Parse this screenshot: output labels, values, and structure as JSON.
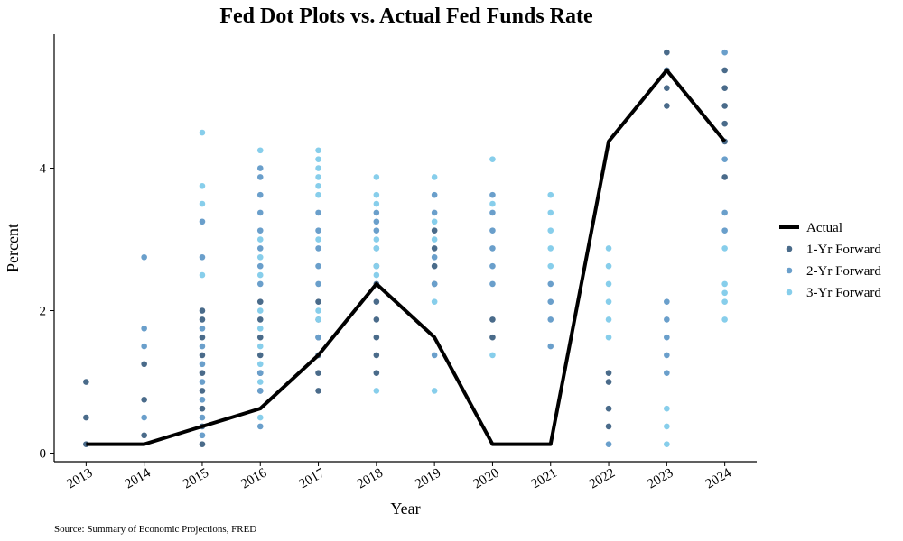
{
  "chart_data": {
    "type": "scatter",
    "title": "Fed Dot Plots vs. Actual Fed Funds Rate",
    "xlabel": "Year",
    "ylabel": "Percent",
    "source": "Source: Summary of Economic Projections, FRED",
    "x_ticks": [
      "2013",
      "2014",
      "2015",
      "2016",
      "2017",
      "2018",
      "2019",
      "2020",
      "2021",
      "2022",
      "2023",
      "2024"
    ],
    "y_ticks": [
      "0",
      "2",
      "4"
    ],
    "xlim": [
      2012.45,
      2024.55
    ],
    "ylim": [
      -0.12,
      5.88
    ],
    "legend_position": "right",
    "grid": false,
    "line": {
      "name": "Actual",
      "color": "#000000",
      "x": [
        2013,
        2014,
        2015,
        2016,
        2017,
        2018,
        2019,
        2020,
        2021,
        2022,
        2023,
        2024
      ],
      "y": [
        0.125,
        0.125,
        0.375,
        0.625,
        1.375,
        2.375,
        1.625,
        0.125,
        0.125,
        4.375,
        5.375,
        4.375
      ]
    },
    "series": [
      {
        "name": "1-Yr Forward",
        "color": "#4a6b8a",
        "points": [
          [
            2013,
            1.0
          ],
          [
            2013,
            0.5
          ],
          [
            2013,
            0.125
          ],
          [
            2014,
            1.25
          ],
          [
            2014,
            0.75
          ],
          [
            2014,
            0.25
          ],
          [
            2015,
            2.0
          ],
          [
            2015,
            1.875
          ],
          [
            2015,
            1.625
          ],
          [
            2015,
            1.375
          ],
          [
            2015,
            1.125
          ],
          [
            2015,
            0.875
          ],
          [
            2015,
            0.625
          ],
          [
            2015,
            0.375
          ],
          [
            2015,
            0.125
          ],
          [
            2016,
            2.125
          ],
          [
            2016,
            1.875
          ],
          [
            2016,
            1.625
          ],
          [
            2016,
            1.375
          ],
          [
            2016,
            1.125
          ],
          [
            2016,
            0.875
          ],
          [
            2017,
            2.125
          ],
          [
            2017,
            1.875
          ],
          [
            2017,
            1.625
          ],
          [
            2017,
            1.375
          ],
          [
            2017,
            1.125
          ],
          [
            2017,
            0.875
          ],
          [
            2018,
            2.625
          ],
          [
            2018,
            2.375
          ],
          [
            2018,
            2.125
          ],
          [
            2018,
            1.875
          ],
          [
            2018,
            1.625
          ],
          [
            2018,
            1.375
          ],
          [
            2018,
            1.125
          ],
          [
            2019,
            3.125
          ],
          [
            2019,
            2.875
          ],
          [
            2019,
            2.625
          ],
          [
            2019,
            2.375
          ],
          [
            2020,
            1.875
          ],
          [
            2020,
            1.625
          ],
          [
            2022,
            1.125
          ],
          [
            2022,
            1.0
          ],
          [
            2022,
            0.625
          ],
          [
            2022,
            0.375
          ],
          [
            2023,
            5.625
          ],
          [
            2023,
            5.375
          ],
          [
            2023,
            5.125
          ],
          [
            2023,
            4.875
          ],
          [
            2024,
            5.375
          ],
          [
            2024,
            5.125
          ],
          [
            2024,
            4.875
          ],
          [
            2024,
            4.625
          ],
          [
            2024,
            4.375
          ],
          [
            2024,
            3.875
          ]
        ]
      },
      {
        "name": "2-Yr Forward",
        "color": "#6a9fcb",
        "points": [
          [
            2014,
            2.75
          ],
          [
            2014,
            1.75
          ],
          [
            2014,
            1.5
          ],
          [
            2014,
            0.5
          ],
          [
            2015,
            3.25
          ],
          [
            2015,
            2.75
          ],
          [
            2015,
            1.75
          ],
          [
            2015,
            1.5
          ],
          [
            2015,
            1.25
          ],
          [
            2015,
            1.0
          ],
          [
            2015,
            0.75
          ],
          [
            2015,
            0.5
          ],
          [
            2015,
            0.25
          ],
          [
            2016,
            4.0
          ],
          [
            2016,
            3.875
          ],
          [
            2016,
            3.625
          ],
          [
            2016,
            3.375
          ],
          [
            2016,
            3.125
          ],
          [
            2016,
            2.875
          ],
          [
            2016,
            2.625
          ],
          [
            2016,
            2.375
          ],
          [
            2016,
            1.125
          ],
          [
            2016,
            0.875
          ],
          [
            2016,
            0.375
          ],
          [
            2017,
            3.375
          ],
          [
            2017,
            3.125
          ],
          [
            2017,
            2.875
          ],
          [
            2017,
            2.625
          ],
          [
            2017,
            2.375
          ],
          [
            2017,
            1.625
          ],
          [
            2018,
            3.375
          ],
          [
            2018,
            3.25
          ],
          [
            2018,
            3.125
          ],
          [
            2018,
            2.875
          ],
          [
            2019,
            3.625
          ],
          [
            2019,
            3.375
          ],
          [
            2019,
            2.75
          ],
          [
            2019,
            2.375
          ],
          [
            2019,
            1.375
          ],
          [
            2020,
            3.625
          ],
          [
            2020,
            3.375
          ],
          [
            2020,
            3.125
          ],
          [
            2020,
            2.875
          ],
          [
            2020,
            2.625
          ],
          [
            2020,
            2.375
          ],
          [
            2021,
            2.375
          ],
          [
            2021,
            2.125
          ],
          [
            2021,
            1.875
          ],
          [
            2021,
            1.5
          ],
          [
            2022,
            0.125
          ],
          [
            2023,
            2.125
          ],
          [
            2023,
            1.875
          ],
          [
            2023,
            1.625
          ],
          [
            2023,
            1.375
          ],
          [
            2023,
            1.125
          ],
          [
            2024,
            5.625
          ],
          [
            2024,
            4.125
          ],
          [
            2024,
            3.375
          ],
          [
            2024,
            3.125
          ]
        ]
      },
      {
        "name": "3-Yr Forward",
        "color": "#87ceeb",
        "points": [
          [
            2015,
            4.5
          ],
          [
            2015,
            3.75
          ],
          [
            2015,
            3.5
          ],
          [
            2015,
            2.5
          ],
          [
            2016,
            4.25
          ],
          [
            2016,
            3.0
          ],
          [
            2016,
            2.75
          ],
          [
            2016,
            2.5
          ],
          [
            2016,
            2.0
          ],
          [
            2016,
            1.75
          ],
          [
            2016,
            1.5
          ],
          [
            2016,
            1.25
          ],
          [
            2016,
            1.0
          ],
          [
            2016,
            0.5
          ],
          [
            2017,
            4.25
          ],
          [
            2017,
            4.125
          ],
          [
            2017,
            4.0
          ],
          [
            2017,
            3.875
          ],
          [
            2017,
            3.75
          ],
          [
            2017,
            3.625
          ],
          [
            2017,
            3.0
          ],
          [
            2017,
            2.0
          ],
          [
            2017,
            1.875
          ],
          [
            2018,
            3.875
          ],
          [
            2018,
            3.625
          ],
          [
            2018,
            3.5
          ],
          [
            2018,
            3.0
          ],
          [
            2018,
            2.875
          ],
          [
            2018,
            2.625
          ],
          [
            2018,
            2.5
          ],
          [
            2018,
            0.875
          ],
          [
            2019,
            3.875
          ],
          [
            2019,
            3.25
          ],
          [
            2019,
            3.0
          ],
          [
            2019,
            2.125
          ],
          [
            2019,
            0.875
          ],
          [
            2020,
            4.125
          ],
          [
            2020,
            3.5
          ],
          [
            2020,
            1.375
          ],
          [
            2021,
            3.625
          ],
          [
            2021,
            3.375
          ],
          [
            2021,
            3.125
          ],
          [
            2021,
            2.875
          ],
          [
            2021,
            2.625
          ],
          [
            2022,
            2.875
          ],
          [
            2022,
            2.625
          ],
          [
            2022,
            2.375
          ],
          [
            2022,
            2.125
          ],
          [
            2022,
            1.875
          ],
          [
            2022,
            1.625
          ],
          [
            2023,
            0.625
          ],
          [
            2023,
            0.375
          ],
          [
            2023,
            0.125
          ],
          [
            2024,
            2.875
          ],
          [
            2024,
            2.375
          ],
          [
            2024,
            2.25
          ],
          [
            2024,
            2.125
          ],
          [
            2024,
            1.875
          ]
        ]
      }
    ]
  }
}
